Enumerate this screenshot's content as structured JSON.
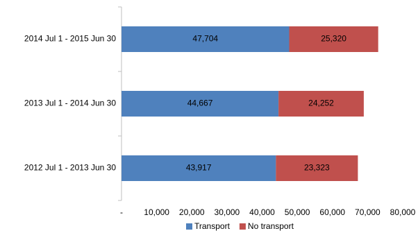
{
  "chart_data": {
    "type": "bar",
    "orientation": "horizontal",
    "stacked": true,
    "categories": [
      "2014 Jul 1 - 2015 Jun 30",
      "2013 Jul 1 - 2014 Jun 30",
      "2012 Jul 1 - 2013 Jun 30"
    ],
    "series": [
      {
        "name": "Transport",
        "color": "#4f81bd",
        "values": [
          47704,
          44667,
          43917
        ],
        "value_labels": [
          "47,704",
          "44,667",
          "43,917"
        ]
      },
      {
        "name": "No transport",
        "color": "#c0504d",
        "values": [
          25320,
          24252,
          23323
        ],
        "value_labels": [
          "25,320",
          "24,252",
          "23,323"
        ]
      }
    ],
    "xlim": [
      0,
      80000
    ],
    "xticks": [
      {
        "value": 0,
        "label": "-"
      },
      {
        "value": 10000,
        "label": "10,000"
      },
      {
        "value": 20000,
        "label": "20,000"
      },
      {
        "value": 30000,
        "label": "30,000"
      },
      {
        "value": 40000,
        "label": "40,000"
      },
      {
        "value": 50000,
        "label": "50,000"
      },
      {
        "value": 60000,
        "label": "60,000"
      },
      {
        "value": 70000,
        "label": "70,000"
      },
      {
        "value": 80000,
        "label": "80,000"
      }
    ],
    "legend": "bottom"
  }
}
